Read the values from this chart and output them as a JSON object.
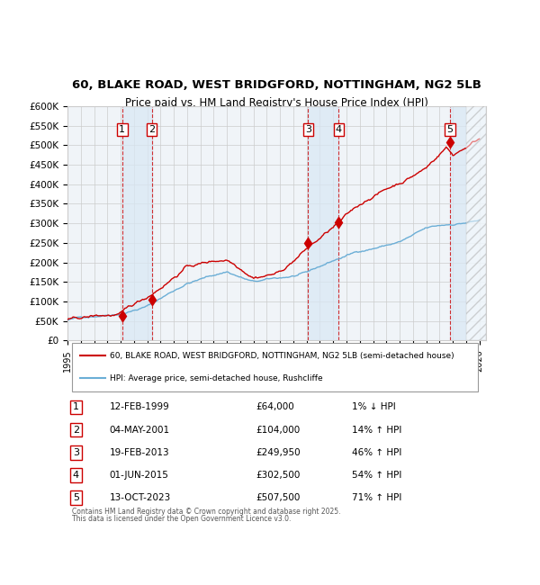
{
  "title": "60, BLAKE ROAD, WEST BRIDGFORD, NOTTINGHAM, NG2 5LB",
  "subtitle": "Price paid vs. HM Land Registry's House Price Index (HPI)",
  "legend_line1": "60, BLAKE ROAD, WEST BRIDGFORD, NOTTINGHAM, NG2 5LB (semi-detached house)",
  "legend_line2": "HPI: Average price, semi-detached house, Rushcliffe",
  "footer1": "Contains HM Land Registry data © Crown copyright and database right 2025.",
  "footer2": "This data is licensed under the Open Government Licence v3.0.",
  "sale_dates": [
    "12-FEB-1999",
    "04-MAY-2001",
    "19-FEB-2013",
    "01-JUN-2015",
    "13-OCT-2023"
  ],
  "sale_prices": [
    64000,
    104000,
    249950,
    302500,
    507500
  ],
  "sale_hpi_pct": [
    "1% ↓ HPI",
    "14% ↑ HPI",
    "46% ↑ HPI",
    "54% ↑ HPI",
    "71% ↑ HPI"
  ],
  "sale_years_x": [
    1999.12,
    2001.34,
    2013.12,
    2015.42,
    2023.78
  ],
  "hpi_color": "#6baed6",
  "price_color": "#cc0000",
  "sale_dot_color": "#cc0000",
  "bg_color": "#ffffff",
  "plot_bg_color": "#f0f4f8",
  "grid_color": "#cccccc",
  "dashed_color": "#cc0000",
  "shade_color": "#d9e8f5",
  "xlabel": "",
  "ylim": [
    0,
    600000
  ],
  "yticks": [
    0,
    50000,
    100000,
    150000,
    200000,
    250000,
    300000,
    350000,
    400000,
    450000,
    500000,
    550000,
    600000
  ],
  "xlim": [
    1995,
    2026.5
  ],
  "xticks": [
    1995,
    1996,
    1997,
    1998,
    1999,
    2000,
    2001,
    2002,
    2003,
    2004,
    2005,
    2006,
    2007,
    2008,
    2009,
    2010,
    2011,
    2012,
    2013,
    2014,
    2015,
    2016,
    2017,
    2018,
    2019,
    2020,
    2021,
    2022,
    2023,
    2024,
    2025,
    2026
  ]
}
